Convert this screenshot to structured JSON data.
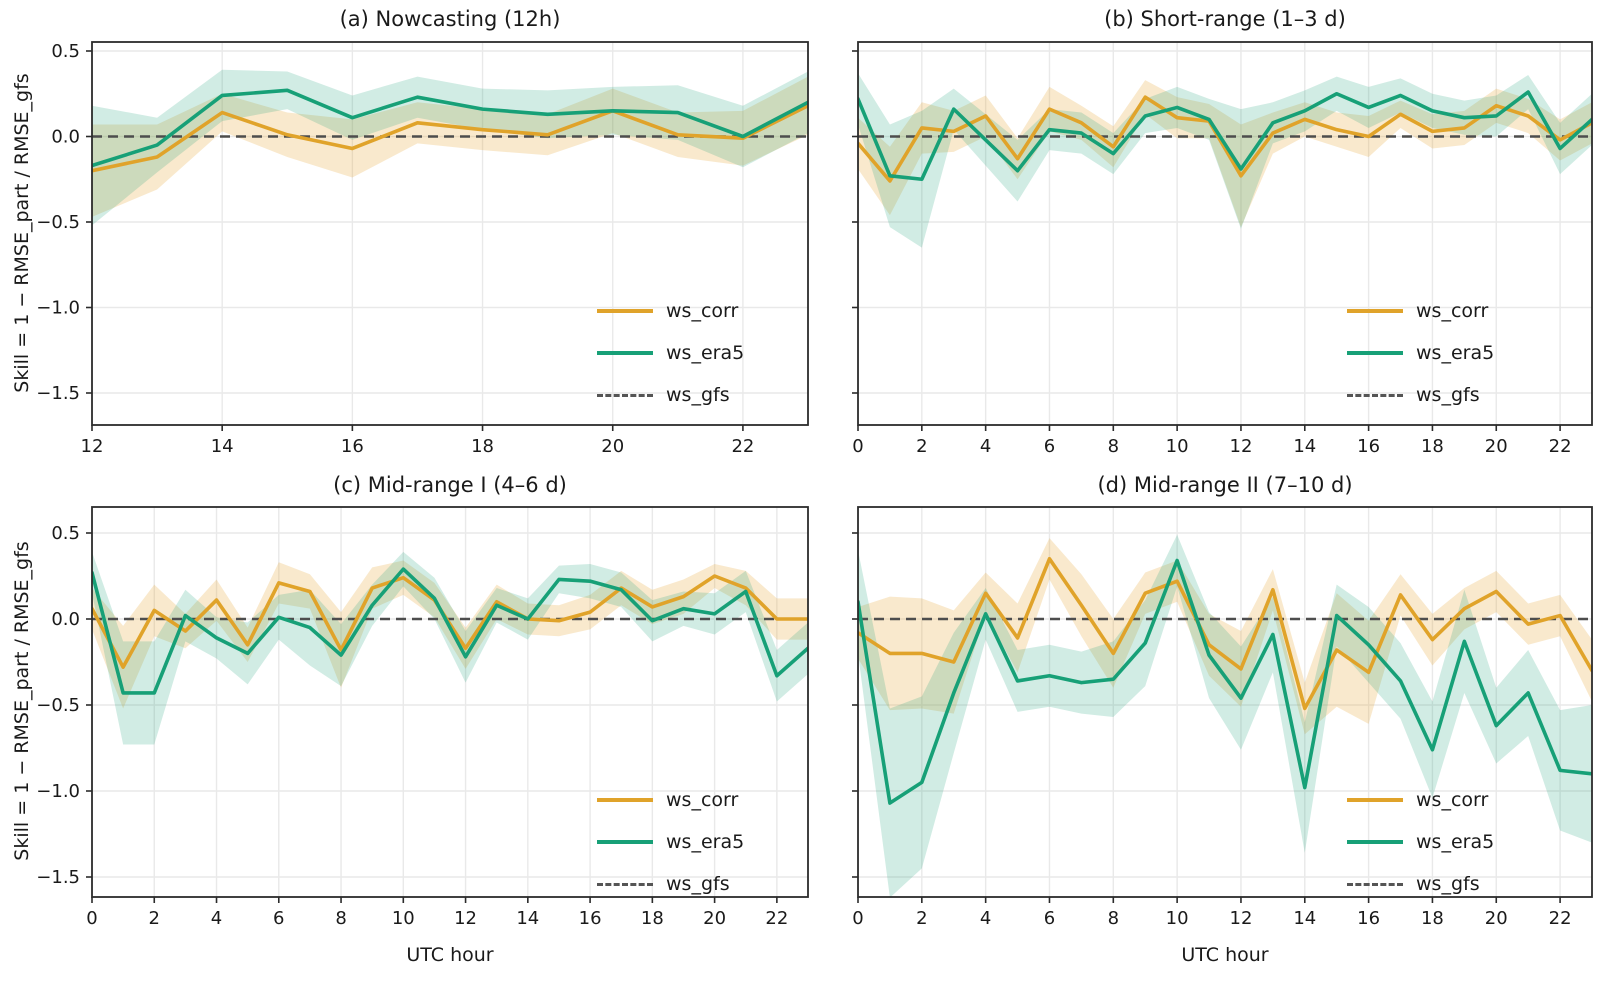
{
  "figure": {
    "ylabel": "Skill = 1 − RMSE_part / RMSE_gfs",
    "xlabel": "UTC hour",
    "legend": {
      "labels": [
        "ws_corr",
        "ws_era5",
        "ws_gfs"
      ],
      "position": "lower right",
      "frame": false
    },
    "colors": {
      "ws_corr": "#E0A32A",
      "ws_corr_band": "rgba(230,167,55,0.25)",
      "ws_era5": "#17A077",
      "ws_era5_band": "rgba(23,160,119,0.20)",
      "ws_gfs": "#4d4d4d",
      "grid": "#e9e9e9",
      "spine": "#2b2b2b",
      "text": "#1a1a1a"
    },
    "y_ticks": [
      0.5,
      0.0,
      -0.5,
      -1.0,
      -1.5
    ],
    "y_tick_labels": [
      "0.5",
      "0.0",
      "−0.5",
      "−1.0",
      "−1.5"
    ],
    "ylim": [
      -1.69,
      0.56
    ]
  },
  "chart_data": [
    {
      "id": "a",
      "type": "line",
      "title": "(a) Nowcasting (12h)",
      "xlim": [
        12,
        23
      ],
      "x_start": 12,
      "x_ticks": [
        12,
        14,
        16,
        18,
        20,
        22
      ],
      "x_tick_labels": [
        "12",
        "14",
        "16",
        "18",
        "20",
        "22"
      ],
      "ref_line": {
        "name": "ws_gfs",
        "value": 0.0
      },
      "series": [
        {
          "name": "ws_corr",
          "values": [
            -0.2,
            -0.12,
            0.14,
            0.01,
            -0.07,
            0.08,
            0.04,
            0.01,
            0.15,
            0.01,
            -0.01,
            0.18
          ],
          "band": [
            0.27,
            0.19,
            0.11,
            0.13,
            0.17,
            0.12,
            0.12,
            0.12,
            0.13,
            0.13,
            0.16,
            0.17
          ]
        },
        {
          "name": "ws_era5",
          "values": [
            -0.17,
            -0.05,
            0.24,
            0.27,
            0.11,
            0.23,
            0.16,
            0.13,
            0.15,
            0.14,
            0.0,
            0.2
          ],
          "band": [
            0.35,
            0.16,
            0.15,
            0.11,
            0.13,
            0.12,
            0.12,
            0.14,
            0.14,
            0.16,
            0.18,
            0.18
          ]
        }
      ]
    },
    {
      "id": "b",
      "type": "line",
      "title": "(b) Short-range (1–3 d)",
      "xlim": [
        0,
        23
      ],
      "x_start": 0,
      "x_ticks": [
        0,
        2,
        4,
        6,
        8,
        10,
        12,
        14,
        16,
        18,
        20,
        22
      ],
      "x_tick_labels": [
        "0",
        "2",
        "4",
        "6",
        "8",
        "10",
        "12",
        "14",
        "16",
        "18",
        "20",
        "22"
      ],
      "ref_line": {
        "name": "ws_gfs",
        "value": 0.0
      },
      "series": [
        {
          "name": "ws_corr",
          "values": [
            -0.04,
            -0.26,
            0.05,
            0.03,
            0.12,
            -0.13,
            0.16,
            0.08,
            -0.06,
            0.23,
            0.11,
            0.09,
            -0.23,
            0.02,
            0.1,
            0.04,
            0.0,
            0.13,
            0.03,
            0.05,
            0.18,
            0.12,
            -0.02,
            0.08
          ],
          "band": [
            0.15,
            0.2,
            0.15,
            0.12,
            0.12,
            0.12,
            0.13,
            0.1,
            0.12,
            0.1,
            0.12,
            0.1,
            0.3,
            0.12,
            0.1,
            0.1,
            0.12,
            0.08,
            0.1,
            0.1,
            0.1,
            0.1,
            0.12,
            0.12
          ]
        },
        {
          "name": "ws_era5",
          "values": [
            0.22,
            -0.23,
            -0.25,
            0.16,
            -0.02,
            -0.2,
            0.04,
            0.02,
            -0.1,
            0.12,
            0.17,
            0.1,
            -0.19,
            0.08,
            0.15,
            0.25,
            0.17,
            0.24,
            0.15,
            0.11,
            0.12,
            0.26,
            -0.07,
            0.1
          ],
          "band": [
            0.15,
            0.3,
            0.4,
            0.12,
            0.15,
            0.18,
            0.12,
            0.12,
            0.12,
            0.1,
            0.12,
            0.12,
            0.35,
            0.12,
            0.12,
            0.1,
            0.12,
            0.1,
            0.1,
            0.1,
            0.12,
            0.1,
            0.15,
            0.15
          ]
        }
      ]
    },
    {
      "id": "c",
      "type": "line",
      "title": "(c) Mid-range I (4–6 d)",
      "xlabel": "UTC hour",
      "xlim": [
        0,
        23
      ],
      "x_start": 0,
      "x_ticks": [
        0,
        2,
        4,
        6,
        8,
        10,
        12,
        14,
        16,
        18,
        20,
        22
      ],
      "x_tick_labels": [
        "0",
        "2",
        "4",
        "6",
        "8",
        "10",
        "12",
        "14",
        "16",
        "18",
        "20",
        "22"
      ],
      "ref_line": {
        "name": "ws_gfs",
        "value": 0.0
      },
      "series": [
        {
          "name": "ws_corr",
          "values": [
            0.06,
            -0.28,
            0.05,
            -0.07,
            0.11,
            -0.15,
            0.21,
            0.16,
            -0.18,
            0.18,
            0.24,
            0.11,
            -0.17,
            0.1,
            0.0,
            -0.01,
            0.04,
            0.18,
            0.07,
            0.13,
            0.25,
            0.18,
            0.0,
            0.0
          ],
          "band": [
            0.12,
            0.24,
            0.15,
            0.1,
            0.12,
            0.1,
            0.12,
            0.1,
            0.22,
            0.12,
            0.1,
            0.1,
            0.12,
            0.1,
            0.09,
            0.09,
            0.1,
            0.1,
            0.1,
            0.1,
            0.07,
            0.1,
            0.12,
            0.12
          ]
        },
        {
          "name": "ws_era5",
          "values": [
            0.27,
            -0.43,
            -0.43,
            0.02,
            -0.11,
            -0.2,
            0.01,
            -0.05,
            -0.21,
            0.08,
            0.29,
            0.12,
            -0.22,
            0.08,
            0.0,
            0.23,
            0.22,
            0.17,
            -0.01,
            0.06,
            0.03,
            0.16,
            -0.33,
            -0.17
          ],
          "band": [
            0.12,
            0.3,
            0.3,
            0.15,
            0.12,
            0.18,
            0.13,
            0.22,
            0.18,
            0.12,
            0.1,
            0.12,
            0.15,
            0.1,
            0.12,
            0.08,
            0.1,
            0.1,
            0.12,
            0.1,
            0.12,
            0.12,
            0.15,
            0.15
          ]
        }
      ]
    },
    {
      "id": "d",
      "type": "line",
      "title": "(d) Mid-range II (7–10 d)",
      "xlabel": "UTC hour",
      "xlim": [
        0,
        23
      ],
      "x_start": 0,
      "x_ticks": [
        0,
        2,
        4,
        6,
        8,
        10,
        12,
        14,
        16,
        18,
        20,
        22
      ],
      "x_tick_labels": [
        "0",
        "2",
        "4",
        "6",
        "8",
        "10",
        "12",
        "14",
        "16",
        "18",
        "20",
        "22"
      ],
      "ref_line": {
        "name": "ws_gfs",
        "value": 0.0
      },
      "series": [
        {
          "name": "ws_corr",
          "values": [
            -0.08,
            -0.2,
            -0.2,
            -0.25,
            0.15,
            -0.11,
            0.35,
            0.08,
            -0.2,
            0.15,
            0.22,
            -0.15,
            -0.29,
            0.17,
            -0.52,
            -0.18,
            -0.31,
            0.14,
            -0.12,
            0.06,
            0.16,
            -0.03,
            0.02,
            -0.3
          ],
          "band": [
            0.15,
            0.33,
            0.32,
            0.3,
            0.12,
            0.2,
            0.12,
            0.18,
            0.2,
            0.12,
            0.12,
            0.18,
            0.22,
            0.12,
            0.15,
            0.33,
            0.3,
            0.12,
            0.15,
            0.12,
            0.12,
            0.12,
            0.12,
            0.18
          ]
        },
        {
          "name": "ws_era5",
          "values": [
            0.1,
            -1.07,
            -0.95,
            -0.43,
            0.03,
            -0.36,
            -0.33,
            -0.37,
            -0.35,
            -0.14,
            0.34,
            -0.21,
            -0.46,
            -0.09,
            -0.98,
            0.02,
            -0.15,
            -0.36,
            -0.76,
            -0.13,
            -0.62,
            -0.43,
            -0.88,
            -0.9
          ],
          "band": [
            0.3,
            0.55,
            0.5,
            0.35,
            0.15,
            0.18,
            0.18,
            0.18,
            0.22,
            0.25,
            0.15,
            0.25,
            0.3,
            0.22,
            0.38,
            0.18,
            0.22,
            0.22,
            0.28,
            0.3,
            0.22,
            0.25,
            0.35,
            0.4
          ]
        }
      ]
    }
  ]
}
